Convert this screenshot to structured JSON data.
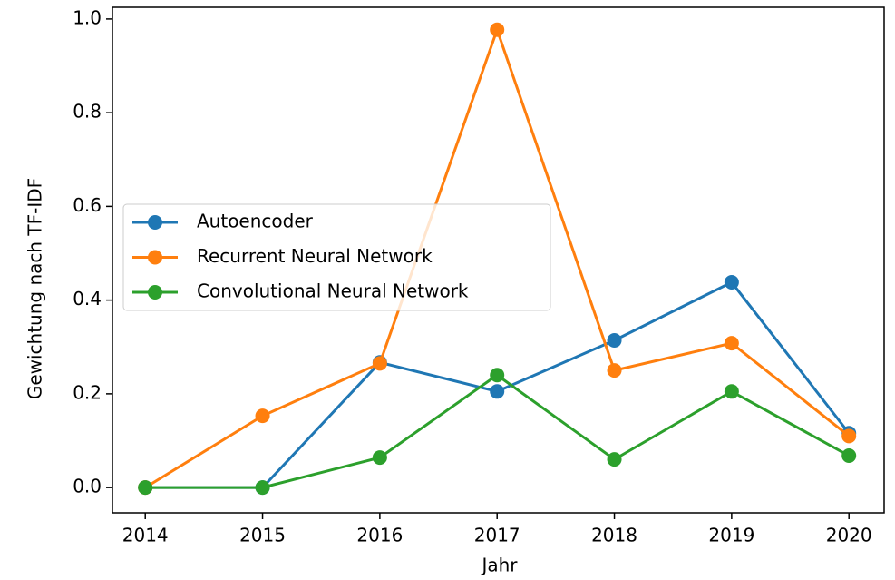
{
  "chart_data": {
    "type": "line",
    "x_label": "Jahr",
    "y_label": "Gewichtung nach TF-IDF",
    "x": [
      2014,
      2015,
      2016,
      2017,
      2018,
      2019,
      2020
    ],
    "series": [
      {
        "name": "Autoencoder",
        "color": "#1f77b4",
        "values": [
          0,
          0,
          0.267,
          0.205,
          0.314,
          0.438,
          0.116
        ]
      },
      {
        "name": "Recurrent Neural Network",
        "color": "#ff7f0e",
        "values": [
          0,
          0.153,
          0.265,
          0.977,
          0.25,
          0.308,
          0.11
        ]
      },
      {
        "name": "Convolutional Neural Network",
        "color": "#2ca02c",
        "values": [
          0,
          0,
          0.064,
          0.24,
          0.06,
          0.205,
          0.068
        ]
      }
    ],
    "xlim": [
      2013.72,
      2020.3
    ],
    "ylim": [
      -0.054,
      1.025
    ],
    "xticks": [
      2014,
      2015,
      2016,
      2017,
      2018,
      2019,
      2020
    ],
    "yticks": [
      {
        "value": 0,
        "label": "0.0"
      },
      0.2,
      0.4,
      0.6,
      0.8,
      {
        "value": 1,
        "label": "1.0"
      }
    ],
    "legend": "center left",
    "grid": false
  }
}
